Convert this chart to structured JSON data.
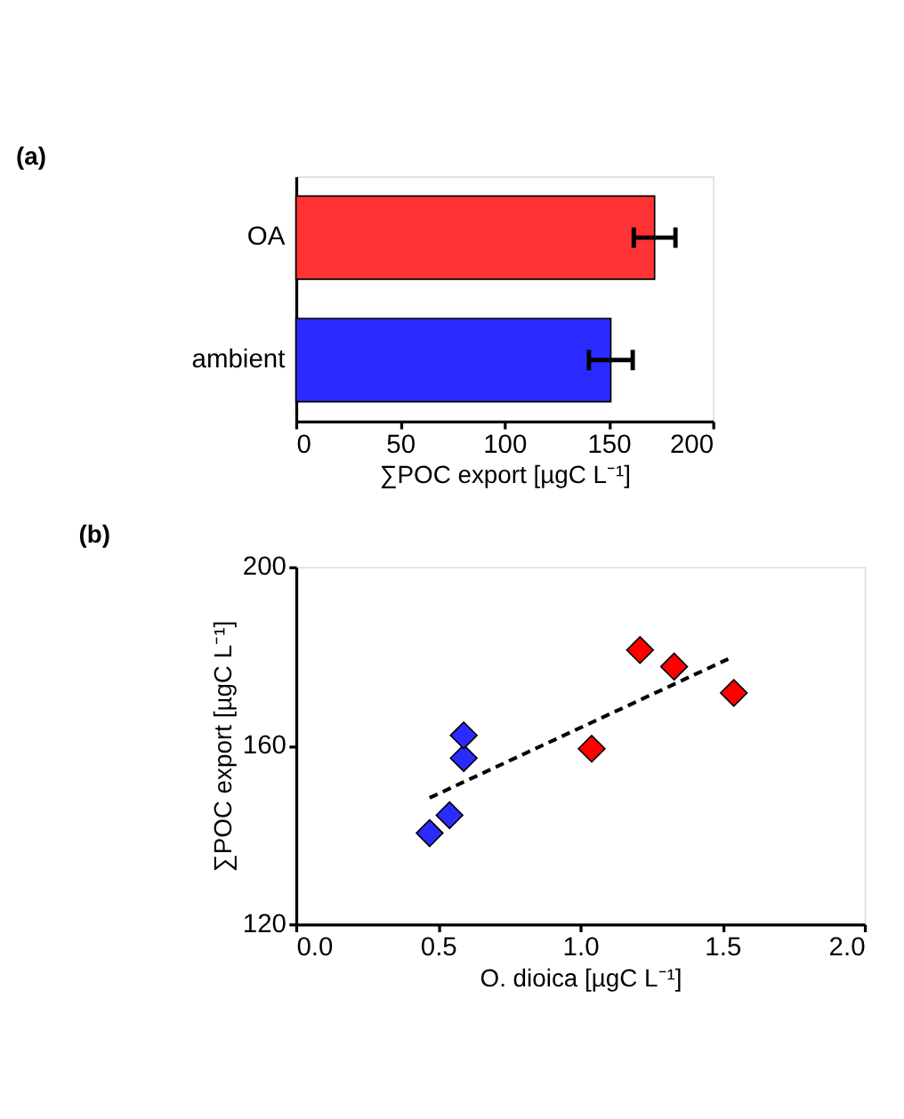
{
  "chart_data": [
    {
      "type": "bar",
      "title": "(a)",
      "orientation": "horizontal",
      "categories": [
        "OA",
        "ambient"
      ],
      "values": [
        172,
        151
      ],
      "colors": [
        "#ff3333",
        "#2b2bff"
      ],
      "errors": [
        10,
        10.5
      ],
      "xlim": [
        0,
        200
      ],
      "xticks": [
        0,
        50,
        100,
        150,
        200
      ],
      "xlabel": "∑POC export [µgC L⁻¹]",
      "grid": false
    },
    {
      "type": "scatter",
      "title": "(b)",
      "xlim": [
        0,
        2
      ],
      "xticks": [
        {
          "value": 0,
          "label": "0.0"
        },
        0.5,
        {
          "value": 1,
          "label": "1.0"
        },
        1.5,
        {
          "value": 2,
          "label": "2.0"
        }
      ],
      "ylim": [
        120,
        200
      ],
      "yticks": [
        120,
        160,
        200
      ],
      "xlabel": "O. dioica [µgC L⁻¹]",
      "ylabel": "∑POC export [µgC L⁻¹]",
      "grid": false,
      "series": [
        {
          "marker": "diamond",
          "color": "#2b2bff",
          "x": [
            0.47,
            0.54,
            0.59,
            0.59
          ],
          "values": [
            140.4,
            144.4,
            157.2,
            162.3
          ]
        },
        {
          "marker": "diamond",
          "color": "#ff0000",
          "x": [
            1.04,
            1.21,
            1.33,
            1.54
          ],
          "values": [
            159.3,
            181.4,
            177.7,
            171.8
          ]
        },
        {
          "type": "line",
          "line_style": "dashed",
          "color": "#000000",
          "x": [
            0.47,
            1.52
          ],
          "values": [
            148.3,
            179.4
          ]
        }
      ]
    }
  ]
}
